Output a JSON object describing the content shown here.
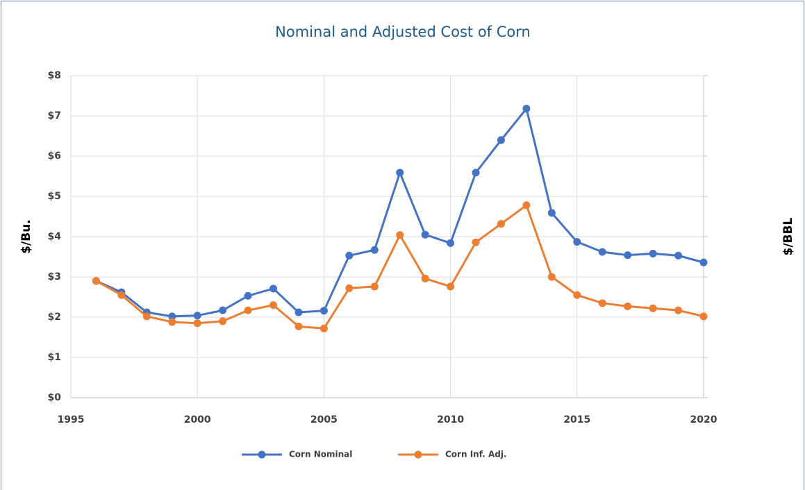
{
  "chart_data": {
    "type": "line",
    "title": "Nominal and Adjusted Cost of Corn",
    "y_label": "$/Bu.",
    "y2_label": "$/BBL",
    "x": [
      1996,
      1997,
      1998,
      1999,
      2000,
      2001,
      2002,
      2003,
      2004,
      2005,
      2006,
      2007,
      2008,
      2009,
      2010,
      2011,
      2012,
      2013,
      2014,
      2015,
      2016,
      2017,
      2018,
      2019,
      2020
    ],
    "series": [
      {
        "name": "Corn Nominal",
        "color": "#4472c4",
        "values": [
          2.9,
          2.62,
          2.12,
          2.02,
          2.04,
          2.17,
          2.53,
          2.71,
          2.12,
          2.16,
          3.53,
          3.67,
          5.59,
          4.05,
          3.84,
          5.59,
          6.4,
          7.18,
          4.59,
          3.87,
          3.62,
          3.54,
          3.58,
          3.53,
          3.36
        ]
      },
      {
        "name": "Corn Inf. Adj.",
        "color": "#ed7d31",
        "values": [
          2.9,
          2.55,
          2.02,
          1.88,
          1.85,
          1.9,
          2.17,
          2.3,
          1.77,
          1.72,
          2.72,
          2.76,
          4.04,
          2.96,
          2.76,
          3.86,
          4.32,
          4.78,
          3.0,
          2.55,
          2.35,
          2.27,
          2.22,
          2.17,
          2.02
        ]
      }
    ],
    "xlim": [
      1995,
      2020
    ],
    "xticks": [
      1995,
      2000,
      2005,
      2010,
      2015,
      2020
    ],
    "ylim": [
      0,
      8
    ],
    "yticks": [
      {
        "value": 0,
        "label": "$0"
      },
      {
        "value": 1,
        "label": "$1"
      },
      {
        "value": 2,
        "label": "$2"
      },
      {
        "value": 3,
        "label": "$3"
      },
      {
        "value": 4,
        "label": "$4"
      },
      {
        "value": 5,
        "label": "$5"
      },
      {
        "value": 6,
        "label": "$6"
      },
      {
        "value": 7,
        "label": "$7"
      },
      {
        "value": 8,
        "label": "$8"
      }
    ],
    "grid": true,
    "legend": "bottom"
  }
}
